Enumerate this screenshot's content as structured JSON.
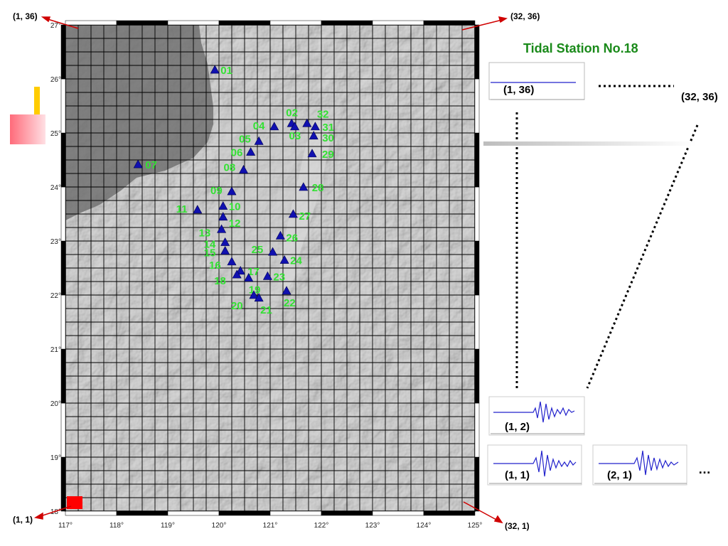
{
  "title": "Tidal Station No.18",
  "corners": {
    "top_left": "(1, 36)",
    "top_right": "(32, 36)",
    "bottom_left": "(1, 1)",
    "bottom_right": "(32, 1)"
  },
  "map": {
    "lat_labels": [
      "27°",
      "26°",
      "25°",
      "24°",
      "23°",
      "22°",
      "21°",
      "20°",
      "19°",
      "18°"
    ],
    "lon_labels": [
      "117°",
      "118°",
      "119°",
      "120°",
      "121°",
      "122°",
      "123°",
      "124°",
      "125°"
    ],
    "grid_cols": 32,
    "grid_rows": 36,
    "stations": [
      {
        "id": "01",
        "lon": 119.92,
        "lat": 26.17
      },
      {
        "id": "02",
        "lon": 121.42,
        "lat": 25.18
      },
      {
        "id": "03",
        "lon": 121.48,
        "lat": 25.12
      },
      {
        "id": "04",
        "lon": 121.08,
        "lat": 25.12
      },
      {
        "id": "05",
        "lon": 120.78,
        "lat": 24.85
      },
      {
        "id": "06",
        "lon": 120.62,
        "lat": 24.65
      },
      {
        "id": "07",
        "lon": 118.42,
        "lat": 24.42
      },
      {
        "id": "08",
        "lon": 120.48,
        "lat": 24.32
      },
      {
        "id": "09",
        "lon": 120.25,
        "lat": 23.92
      },
      {
        "id": "10",
        "lon": 120.08,
        "lat": 23.65
      },
      {
        "id": "11",
        "lon": 119.58,
        "lat": 23.58
      },
      {
        "id": "12",
        "lon": 120.08,
        "lat": 23.45
      },
      {
        "id": "13",
        "lon": 120.05,
        "lat": 23.22
      },
      {
        "id": "14",
        "lon": 120.12,
        "lat": 22.98
      },
      {
        "id": "15",
        "lon": 120.12,
        "lat": 22.82
      },
      {
        "id": "16",
        "lon": 120.25,
        "lat": 22.62
      },
      {
        "id": "17",
        "lon": 120.42,
        "lat": 22.45
      },
      {
        "id": "18",
        "lon": 120.35,
        "lat": 22.38
      },
      {
        "id": "19",
        "lon": 120.58,
        "lat": 22.32
      },
      {
        "id": "20",
        "lon": 120.68,
        "lat": 22.0
      },
      {
        "id": "21",
        "lon": 120.78,
        "lat": 21.95
      },
      {
        "id": "22",
        "lon": 121.32,
        "lat": 22.08
      },
      {
        "id": "23",
        "lon": 120.95,
        "lat": 22.35
      },
      {
        "id": "24",
        "lon": 121.28,
        "lat": 22.65
      },
      {
        "id": "25",
        "lon": 121.05,
        "lat": 22.8
      },
      {
        "id": "26",
        "lon": 121.2,
        "lat": 23.1
      },
      {
        "id": "27",
        "lon": 121.45,
        "lat": 23.5
      },
      {
        "id": "28",
        "lon": 121.65,
        "lat": 24.0
      },
      {
        "id": "29",
        "lon": 121.82,
        "lat": 24.62
      },
      {
        "id": "30",
        "lon": 121.85,
        "lat": 24.95
      },
      {
        "id": "31",
        "lon": 121.88,
        "lat": 25.12
      },
      {
        "id": "32",
        "lon": 121.72,
        "lat": 25.18
      }
    ]
  },
  "waveforms": {
    "top": "(1, 36)",
    "top_right": "(32, 36)",
    "mid": "(1, 2)",
    "bottom_left": "(1, 1)",
    "bottom_mid": "(2, 1)",
    "more": "…"
  }
}
